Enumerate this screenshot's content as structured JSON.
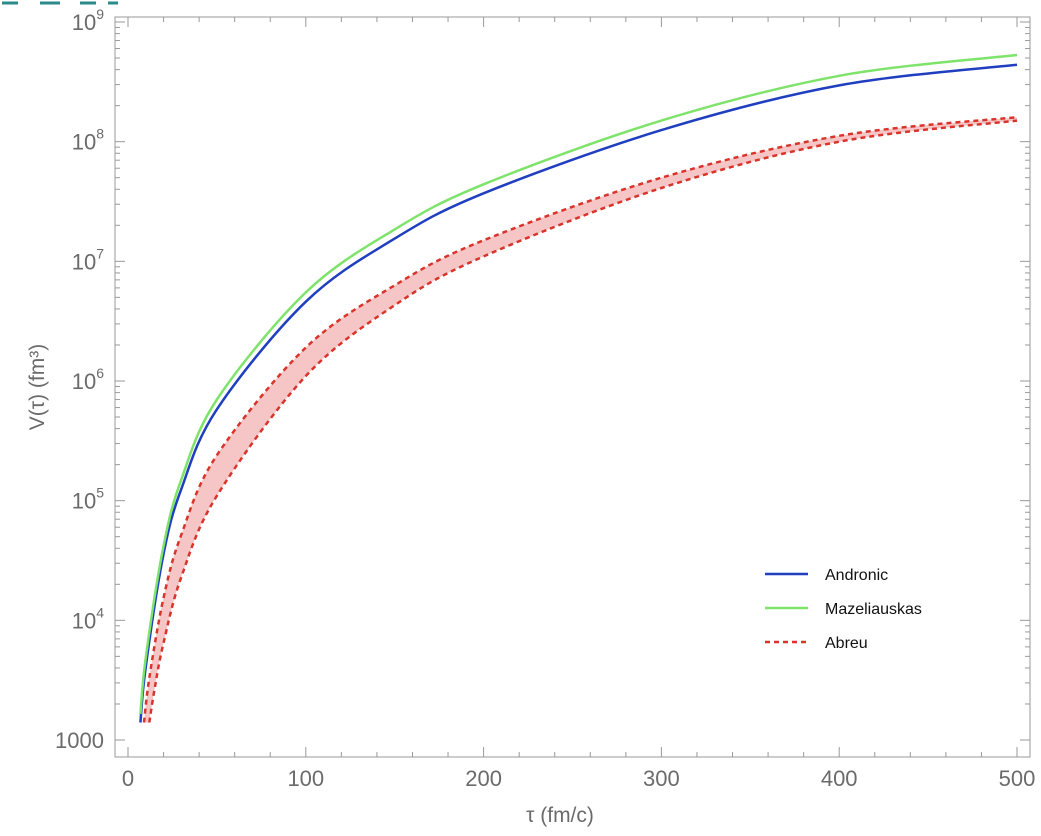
{
  "chart_data": {
    "type": "line",
    "xlabel": "τ (fm/c)",
    "ylabel": "V(τ) (fm³)",
    "xlim": [
      0,
      510
    ],
    "ylim": [
      1000,
      1000000000
    ],
    "yscale": "log",
    "grid": false,
    "legend_placement": "bottom-right",
    "x_ticks": [
      0,
      100,
      200,
      300,
      400,
      500
    ],
    "x_tick_labels": [
      "0",
      "100",
      "200",
      "300",
      "400",
      "500"
    ],
    "y_ticks": [
      {
        "value": 1000,
        "label": "1000",
        "base": "",
        "exp": ""
      },
      {
        "value": 10000,
        "label": "",
        "base": "10",
        "exp": "4"
      },
      {
        "value": 100000,
        "label": "",
        "base": "10",
        "exp": "5"
      },
      {
        "value": 1000000,
        "label": "",
        "base": "10",
        "exp": "6"
      },
      {
        "value": 10000000,
        "label": "",
        "base": "10",
        "exp": "7"
      },
      {
        "value": 100000000,
        "label": "",
        "base": "10",
        "exp": "8"
      },
      {
        "value": 1000000000,
        "label": "",
        "base": "10",
        "exp": "9"
      }
    ],
    "series": [
      {
        "name": "Andronic",
        "color": "#1f3fbf",
        "style": "solid",
        "x": [
          7,
          10,
          20,
          30,
          50,
          100,
          150,
          200,
          300,
          400,
          500
        ],
        "y": [
          1400,
          4100,
          36000,
          125000,
          580000,
          4600000,
          15500000,
          37000000,
          125000000,
          295000000,
          440000000
        ]
      },
      {
        "name": "Mazeliauskas",
        "color": "#7ee36a",
        "style": "solid",
        "x": [
          7,
          10,
          20,
          30,
          50,
          100,
          150,
          200,
          300,
          400,
          500
        ],
        "y": [
          1650,
          4900,
          42000,
          150000,
          700000,
          5500000,
          18500000,
          44000000,
          150000000,
          355000000,
          530000000
        ]
      },
      {
        "name": "Abreu",
        "color": "#d9342b",
        "style": "dashed",
        "band_fill": "#f6c6c6",
        "upper_x": [
          9,
          12,
          20,
          30,
          50,
          100,
          150,
          200,
          300,
          400,
          500
        ],
        "upper_y": [
          1400,
          3300,
          15500,
          52000,
          240000,
          1900000,
          6300000,
          15000000,
          50000000,
          112000000,
          160000000
        ],
        "lower_x": [
          12,
          15,
          20,
          30,
          50,
          100,
          150,
          200,
          300,
          400,
          500
        ],
        "lower_y": [
          1400,
          2700,
          6500,
          23000,
          110000,
          1100000,
          4300000,
          11000000,
          41000000,
          100000000,
          150000000
        ]
      }
    ]
  },
  "figure": {
    "corner_mark_color": "#2b8a8a"
  }
}
